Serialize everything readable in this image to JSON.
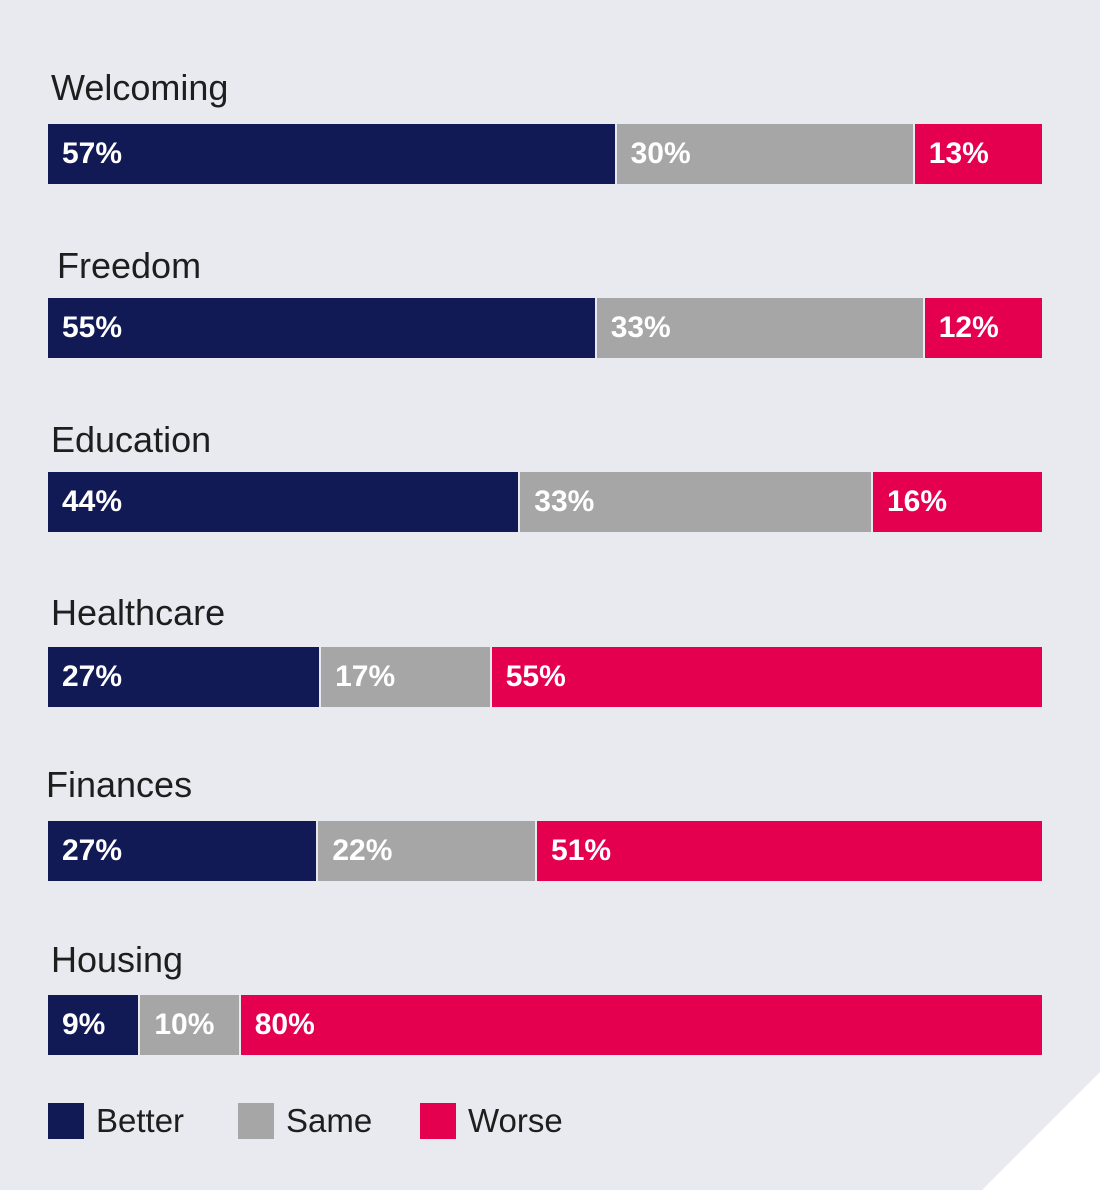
{
  "chart_data": {
    "type": "bar",
    "orientation": "horizontal",
    "stacked": true,
    "title": "",
    "xlabel": "",
    "ylabel": "",
    "categories": [
      "Welcoming",
      "Freedom",
      "Education",
      "Healthcare",
      "Finances",
      "Housing"
    ],
    "series": [
      {
        "name": "Better",
        "color": "#121a56",
        "values": [
          57,
          55,
          44,
          27,
          27,
          9
        ]
      },
      {
        "name": "Same",
        "color": "#a6a6a6",
        "values": [
          30,
          33,
          33,
          17,
          22,
          10
        ]
      },
      {
        "name": "Worse",
        "color": "#e4004f",
        "values": [
          13,
          12,
          16,
          55,
          51,
          80
        ]
      }
    ],
    "value_suffix": "%",
    "grid": false,
    "legend_position": "bottom-left"
  }
}
